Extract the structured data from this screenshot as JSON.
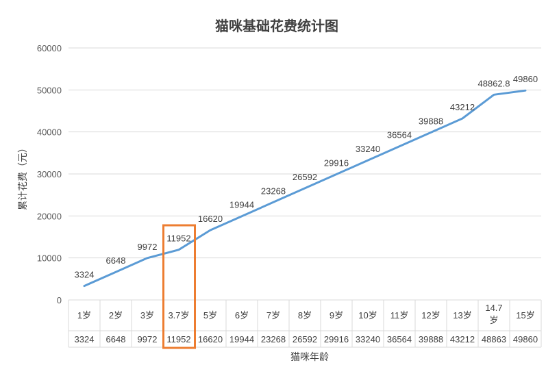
{
  "chart_data": {
    "type": "line",
    "title": "猫咪基础花费统计图",
    "xlabel": "猫咪年龄",
    "ylabel": "累计花费（元）",
    "ylim": [
      0,
      60000
    ],
    "yticks": [
      0,
      10000,
      20000,
      30000,
      40000,
      50000,
      60000
    ],
    "grid": true,
    "legend": "none",
    "categories": [
      "1岁",
      "2岁",
      "3岁",
      "3.7岁",
      "5岁",
      "6岁",
      "7岁",
      "8岁",
      "9岁",
      "10岁",
      "11岁",
      "12岁",
      "13岁",
      "14.7岁",
      "15岁"
    ],
    "values": [
      3324,
      6648,
      9972,
      11952,
      16620,
      19944,
      23268,
      26592,
      29916,
      33240,
      36564,
      39888,
      43212,
      48862.8,
      49860
    ],
    "data_labels": [
      "3324",
      "6648",
      "9972",
      "11952",
      "16620",
      "19944",
      "23268",
      "26592",
      "29916",
      "33240",
      "36564",
      "39888",
      "43212",
      "48862.8",
      "49860"
    ],
    "table_values": [
      "3324",
      "6648",
      "9972",
      "11952",
      "16620",
      "19944",
      "23268",
      "26592",
      "29916",
      "33240",
      "36564",
      "39888",
      "43212",
      "48863",
      "49860"
    ],
    "line_color": "#5B9BD5",
    "highlight": {
      "category": "3.7岁",
      "color": "#ED7D31"
    }
  }
}
